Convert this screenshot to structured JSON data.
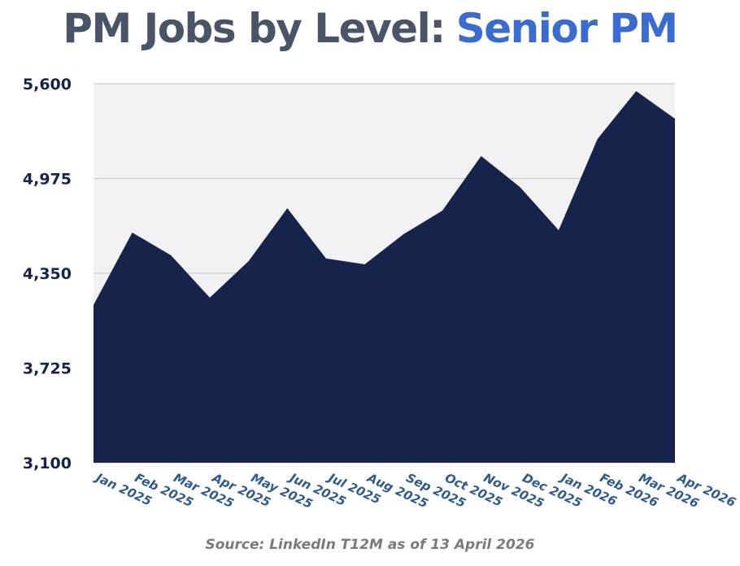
{
  "chart_data": {
    "type": "area",
    "title": "PM Jobs by Level:",
    "title_highlight": "Senior PM",
    "source": "Source: LinkedIn T12M as of 13 April 2026",
    "categories": [
      "Jan 2025",
      "Feb 2025",
      "Mar 2025",
      "Apr 2025",
      "May 2025",
      "Jun 2025",
      "Jul 2025",
      "Aug 2025",
      "Sep 2025",
      "Oct 2025",
      "Nov 2025",
      "Dec 2025",
      "Jan 2026",
      "Feb 2026",
      "Mar 2026",
      "Apr 2026"
    ],
    "series": [
      {
        "name": "Senior PM",
        "color": "#16234a",
        "values": [
          4141,
          4618,
          4468,
          4189,
          4430,
          4779,
          4447,
          4409,
          4608,
          4763,
          5123,
          4919,
          4634,
          5235,
          5552,
          5369
        ]
      }
    ],
    "ylim": [
      3100,
      5600
    ],
    "yticks": [
      {
        "value": 3100,
        "label": "3,100"
      },
      {
        "value": 3725,
        "label": "3,725"
      },
      {
        "value": 4350,
        "label": "4,350"
      },
      {
        "value": 4975,
        "label": "4,975"
      },
      {
        "value": 5600,
        "label": "5,600"
      }
    ],
    "grid": true
  }
}
